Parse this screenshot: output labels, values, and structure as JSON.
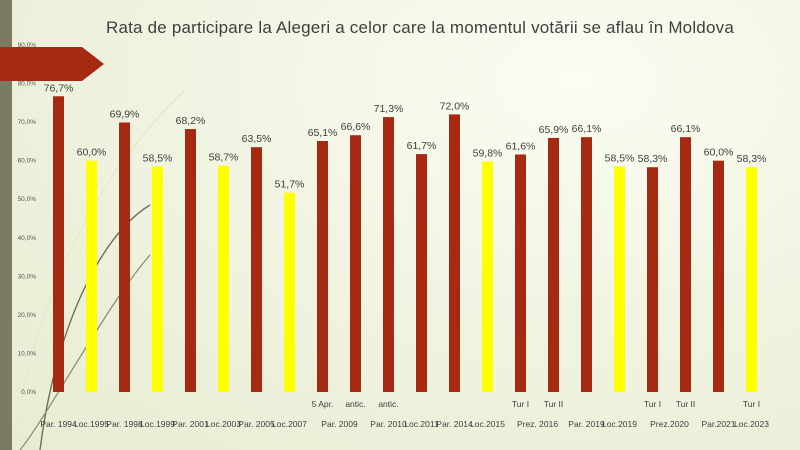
{
  "chart_data": {
    "type": "bar",
    "title": "Rata de participare la Alegeri a celor care la momentul votării se aflau în Moldova",
    "ylim": [
      0,
      90
    ],
    "yticks": [
      "0,0%",
      "10,0%",
      "20,0%",
      "30,0%",
      "40,0%",
      "50,0%",
      "60,0%",
      "70,0%",
      "80,0%",
      "90,0%"
    ],
    "grid": false,
    "legend": "none",
    "categories": [
      "Par. 1994",
      "Loc.1995",
      "Par. 1998",
      "Loc.1999",
      "Par. 2001",
      "Loc.2003",
      "Par. 2005",
      "Loc.2007",
      "Par. 2009",
      "Par. 2010",
      "Loc.2011",
      "Par. 2014",
      "Loc.2015",
      "Prez. 2016",
      "Par. 2019",
      "Loc.2019",
      "Prez.2020",
      "Par.2021",
      "Loc.2023"
    ],
    "bars": [
      {
        "category": 0,
        "value": 76.7,
        "label": "76,7%",
        "kind": "parliamentary",
        "sublabel": ""
      },
      {
        "category": 1,
        "value": 60.0,
        "label": "60,0%",
        "kind": "local",
        "sublabel": ""
      },
      {
        "category": 2,
        "value": 69.9,
        "label": "69,9%",
        "kind": "parliamentary",
        "sublabel": ""
      },
      {
        "category": 3,
        "value": 58.5,
        "label": "58,5%",
        "kind": "local",
        "sublabel": ""
      },
      {
        "category": 4,
        "value": 68.2,
        "label": "68,2%",
        "kind": "parliamentary",
        "sublabel": ""
      },
      {
        "category": 5,
        "value": 58.7,
        "label": "58,7%",
        "kind": "local",
        "sublabel": ""
      },
      {
        "category": 6,
        "value": 63.5,
        "label": "63,5%",
        "kind": "parliamentary",
        "sublabel": ""
      },
      {
        "category": 7,
        "value": 51.7,
        "label": "51,7%",
        "kind": "local",
        "sublabel": ""
      },
      {
        "category": 8,
        "value": 65.1,
        "label": "65,1%",
        "kind": "parliamentary",
        "sublabel": "5 Apr."
      },
      {
        "category": 8,
        "value": 66.6,
        "label": "66,6%",
        "kind": "parliamentary",
        "sublabel": "antic."
      },
      {
        "category": 9,
        "value": 71.3,
        "label": "71,3%",
        "kind": "parliamentary",
        "sublabel": "antic."
      },
      {
        "category": 10,
        "value": 61.7,
        "label": "61,7%",
        "kind": "parliamentary",
        "sublabel": ""
      },
      {
        "category": 11,
        "value": 72.0,
        "label": "72,0%",
        "kind": "parliamentary",
        "sublabel": ""
      },
      {
        "category": 12,
        "value": 59.8,
        "label": "59,8%",
        "kind": "local",
        "sublabel": ""
      },
      {
        "category": 13,
        "value": 61.6,
        "label": "61,6%",
        "kind": "parliamentary",
        "sublabel": "Tur I"
      },
      {
        "category": 13,
        "value": 65.9,
        "label": "65,9%",
        "kind": "parliamentary",
        "sublabel": "Tur II"
      },
      {
        "category": 14,
        "value": 66.1,
        "label": "66,1%",
        "kind": "parliamentary",
        "sublabel": ""
      },
      {
        "category": 15,
        "value": 58.5,
        "label": "58,5%",
        "kind": "local",
        "sublabel": ""
      },
      {
        "category": 16,
        "value": 58.3,
        "label": "58,3%",
        "kind": "parliamentary",
        "sublabel": "Tur I"
      },
      {
        "category": 16,
        "value": 66.1,
        "label": "66,1%",
        "kind": "parliamentary",
        "sublabel": "Tur II"
      },
      {
        "category": 17,
        "value": 60.0,
        "label": "60,0%",
        "kind": "parliamentary",
        "sublabel": ""
      },
      {
        "category": 18,
        "value": 58.3,
        "label": "58,3%",
        "kind": "local",
        "sublabel": "Tur I"
      }
    ],
    "colors": {
      "parliamentary": "#a52a11",
      "local": "#ffff00"
    }
  }
}
